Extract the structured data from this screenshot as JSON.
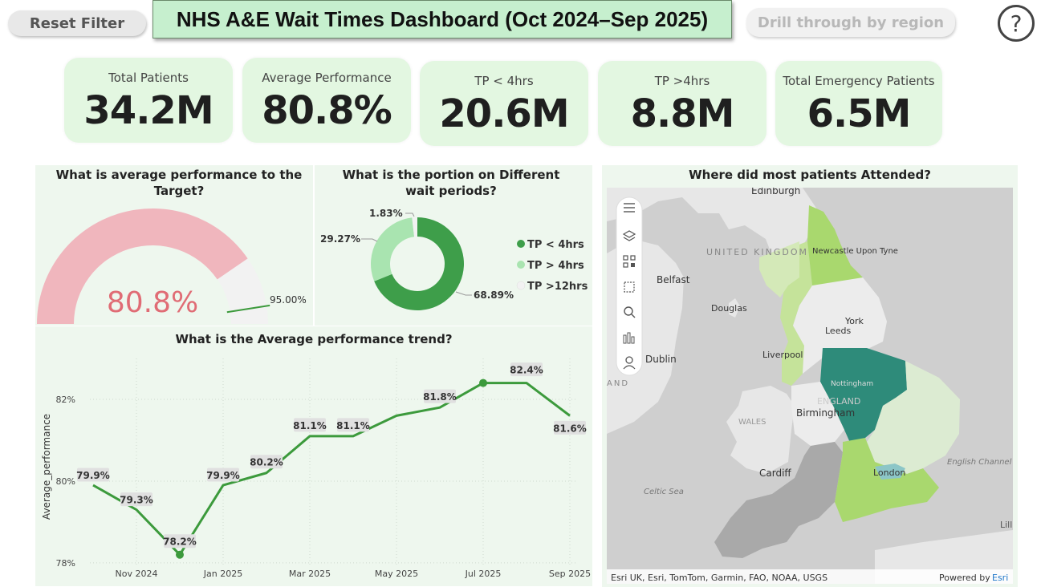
{
  "header": {
    "reset_label": "Reset Filter",
    "title": "NHS A&E Wait Times Dashboard (Oct 2024–Sep 2025)",
    "drill_label": "Drill through by region",
    "help_glyph": "?"
  },
  "kpis": [
    {
      "label": "Total Patients",
      "value": "34.2M"
    },
    {
      "label": "Average Performance",
      "value": "80.8%"
    },
    {
      "label": "TP < 4hrs",
      "value": "20.6M"
    },
    {
      "label": "TP >4hrs",
      "value": "8.8M"
    },
    {
      "label": "Total Emergency Patients",
      "value": "6.5M"
    }
  ],
  "gauge": {
    "title": "What is average performance to the Target?",
    "value_label": "80.8%",
    "target_label": "95.00%",
    "value": 80.8,
    "target": 95,
    "min": 0,
    "max": 100,
    "fill_color": "#f0b6bd",
    "rest_color": "#f2f2f2",
    "value_color": "#e06c75",
    "target_color": "#3c9a3c"
  },
  "donut": {
    "title": "What is the portion on Different wait periods?",
    "slices": [
      {
        "name": "TP < 4hrs",
        "value": 68.89,
        "label": "68.89%",
        "color": "#3e9e4a"
      },
      {
        "name": "TP > 4hrs",
        "value": 29.27,
        "label": "29.27%",
        "color": "#a9e4b0"
      },
      {
        "name": "TP >12hrs",
        "value": 1.83,
        "label": "1.83%",
        "color": "#f2f2f2"
      }
    ]
  },
  "chart_data": {
    "type": "line",
    "title": "What is the Average performance trend?",
    "xlabel": "",
    "ylabel": "Average_performance",
    "x": [
      "Oct 2024",
      "Nov 2024",
      "Dec 2024",
      "Jan 2025",
      "Feb 2025",
      "Mar 2025",
      "Apr 2025",
      "May 2025",
      "Jun 2025",
      "Jul 2025",
      "Aug 2025",
      "Sep 2025"
    ],
    "values": [
      79.9,
      79.3,
      78.2,
      79.9,
      80.2,
      81.1,
      81.1,
      81.6,
      81.8,
      82.4,
      82.4,
      81.6
    ],
    "point_labels": [
      "79.9%",
      "79.3%",
      "78.2%",
      "79.9%",
      "80.2%",
      "81.1%",
      "81.1%",
      "",
      "81.8%",
      "",
      "82.4%",
      "81.6%"
    ],
    "xticks": [
      "Nov 2024",
      "Jan 2025",
      "Mar 2025",
      "May 2025",
      "Jul 2025",
      "Sep 2025"
    ],
    "yticks": [
      "78%",
      "80%",
      "82%"
    ],
    "ylim": [
      77.9,
      83.0
    ],
    "line_color": "#3c9a3c",
    "grid": true
  },
  "map": {
    "title": "Where did most patients Attended?",
    "toolbar_icons": [
      "menu-icon",
      "layers-icon",
      "qr-icon",
      "select-icon",
      "search-icon",
      "chart-icon",
      "person-icon"
    ],
    "place_labels": [
      "Edinburgh",
      "UNITED KINGDOM",
      "Newcastle Upon Tyne",
      "Belfast",
      "Douglas",
      "York",
      "Leeds",
      "Dublin",
      "Liverpool",
      "Nottingham",
      "ENGLAND",
      "WALES",
      "Birmingham",
      "Cardiff",
      "London",
      "Celtic Sea",
      "English Channel",
      "AND",
      "Lill"
    ],
    "attribution": "Esri UK, Esri, TomTom, Garmin, FAO, NOAA, USGS",
    "powered_by": "Powered by",
    "powered_brand": "Esri"
  }
}
